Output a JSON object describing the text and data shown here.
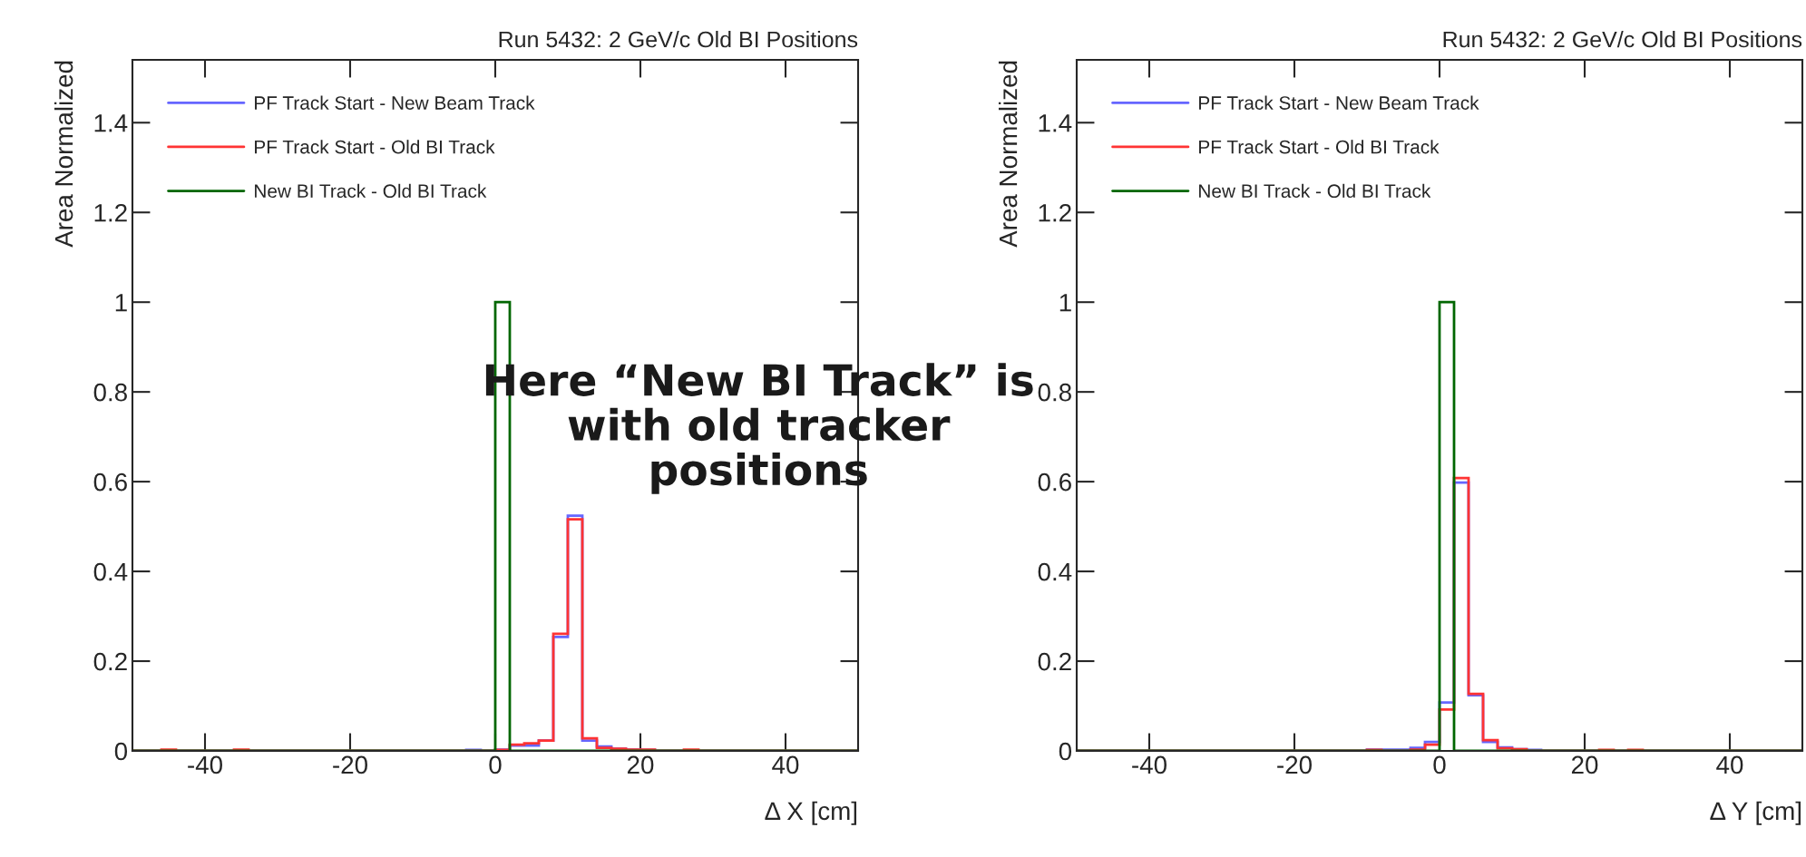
{
  "chart_data": [
    {
      "type": "histogram",
      "title": "Run 5432: 2 GeV/c Old BI Positions",
      "xlabel": "Δ X [cm]",
      "ylabel": "Area Normalized",
      "xlim": [
        -50,
        50
      ],
      "ylim": [
        0,
        1.54
      ],
      "xticks": [
        -40,
        -20,
        0,
        20,
        40
      ],
      "yticks": [
        0,
        0.2,
        0.4,
        0.6,
        0.8,
        1,
        1.2,
        1.4
      ],
      "legend": "top left",
      "grid": false,
      "annotations": [
        "Here “New BI Track” is\nwith old tracker\npositions"
      ],
      "bins": [
        -50,
        -48,
        -46,
        -44,
        -42,
        -40,
        -38,
        -36,
        -34,
        -32,
        -30,
        -28,
        -26,
        -24,
        -22,
        -20,
        -18,
        -16,
        -14,
        -12,
        -10,
        -8,
        -6,
        -4,
        -2,
        0,
        2,
        4,
        6,
        8,
        10,
        12,
        14,
        16,
        18,
        20,
        22,
        24,
        26,
        28,
        30,
        32,
        34,
        36,
        38,
        40,
        42,
        44,
        46,
        48,
        50
      ],
      "series": [
        {
          "name": "PF Track Start - New Beam Track",
          "color": "#6666ff",
          "values": [
            0,
            0,
            0,
            0,
            0,
            0,
            0,
            0,
            0,
            0,
            0,
            0,
            0,
            0,
            0,
            0,
            0,
            0,
            0,
            0,
            0,
            0,
            0,
            0.002,
            0,
            0.003,
            0.012,
            0.012,
            0.023,
            0.254,
            0.524,
            0.023,
            0.01,
            0.005,
            0.003,
            0.002,
            0,
            0,
            0,
            0,
            0,
            0,
            0,
            0,
            0,
            0,
            0,
            0,
            0,
            0
          ]
        },
        {
          "name": "PF Track Start - Old BI Track",
          "color": "#ff3333",
          "values": [
            0,
            0,
            0.003,
            0,
            0,
            0,
            0,
            0.003,
            0,
            0,
            0,
            0,
            0,
            0,
            0,
            0,
            0,
            0,
            0,
            0,
            0,
            0,
            0,
            0,
            0,
            0.002,
            0.014,
            0.017,
            0.023,
            0.261,
            0.516,
            0.028,
            0.007,
            0.005,
            0.003,
            0.003,
            0,
            0,
            0.003,
            0,
            0,
            0,
            0,
            0,
            0,
            0,
            0,
            0,
            0,
            0
          ]
        },
        {
          "name": "New BI Track - Old BI Track",
          "color": "#006600",
          "values": [
            0,
            0,
            0,
            0,
            0,
            0,
            0,
            0,
            0,
            0,
            0,
            0,
            0,
            0,
            0,
            0,
            0,
            0,
            0,
            0,
            0,
            0,
            0,
            0,
            0,
            1.0,
            0,
            0,
            0,
            0,
            0,
            0,
            0,
            0,
            0,
            0,
            0,
            0,
            0,
            0,
            0,
            0,
            0,
            0,
            0,
            0,
            0,
            0,
            0,
            0
          ]
        }
      ]
    },
    {
      "type": "histogram",
      "title": "Run 5432: 2 GeV/c Old BI Positions",
      "xlabel": "Δ Y [cm]",
      "ylabel": "Area Normalized",
      "xlim": [
        -50,
        50
      ],
      "ylim": [
        0,
        1.54
      ],
      "xticks": [
        -40,
        -20,
        0,
        20,
        40
      ],
      "yticks": [
        0,
        0.2,
        0.4,
        0.6,
        0.8,
        1,
        1.2,
        1.4
      ],
      "legend": "top left",
      "grid": false,
      "bins": [
        -50,
        -48,
        -46,
        -44,
        -42,
        -40,
        -38,
        -36,
        -34,
        -32,
        -30,
        -28,
        -26,
        -24,
        -22,
        -20,
        -18,
        -16,
        -14,
        -12,
        -10,
        -8,
        -6,
        -4,
        -2,
        0,
        2,
        4,
        6,
        8,
        10,
        12,
        14,
        16,
        18,
        20,
        22,
        24,
        26,
        28,
        30,
        32,
        34,
        36,
        38,
        40,
        42,
        44,
        46,
        48,
        50
      ],
      "series": [
        {
          "name": "PF Track Start - New Beam Track",
          "color": "#6666ff",
          "values": [
            0,
            0,
            0,
            0,
            0,
            0,
            0,
            0,
            0,
            0,
            0,
            0,
            0,
            0,
            0,
            0,
            0,
            0,
            0,
            0,
            0.003,
            0.003,
            0.003,
            0.007,
            0.02,
            0.108,
            0.598,
            0.124,
            0.02,
            0.008,
            0.004,
            0.002,
            0,
            0,
            0,
            0,
            0,
            0,
            0,
            0,
            0,
            0,
            0,
            0,
            0,
            0,
            0,
            0,
            0,
            0
          ]
        },
        {
          "name": "PF Track Start - Old BI Track",
          "color": "#ff3333",
          "values": [
            0,
            0,
            0,
            0,
            0,
            0,
            0,
            0,
            0,
            0,
            0,
            0,
            0,
            0,
            0,
            0,
            0,
            0,
            0,
            0,
            0.002,
            0,
            0,
            0.003,
            0.014,
            0.092,
            0.608,
            0.127,
            0.024,
            0.006,
            0.004,
            0,
            0,
            0,
            0,
            0,
            0.002,
            0,
            0.002,
            0,
            0,
            0,
            0,
            0,
            0,
            0,
            0,
            0,
            0,
            0
          ]
        },
        {
          "name": "New BI Track - Old BI Track",
          "color": "#006600",
          "values": [
            0,
            0,
            0,
            0,
            0,
            0,
            0,
            0,
            0,
            0,
            0,
            0,
            0,
            0,
            0,
            0,
            0,
            0,
            0,
            0,
            0,
            0,
            0,
            0,
            0,
            1.0,
            0,
            0,
            0,
            0,
            0,
            0,
            0,
            0,
            0,
            0,
            0,
            0,
            0,
            0,
            0,
            0,
            0,
            0,
            0,
            0,
            0,
            0,
            0,
            0
          ]
        }
      ]
    }
  ]
}
